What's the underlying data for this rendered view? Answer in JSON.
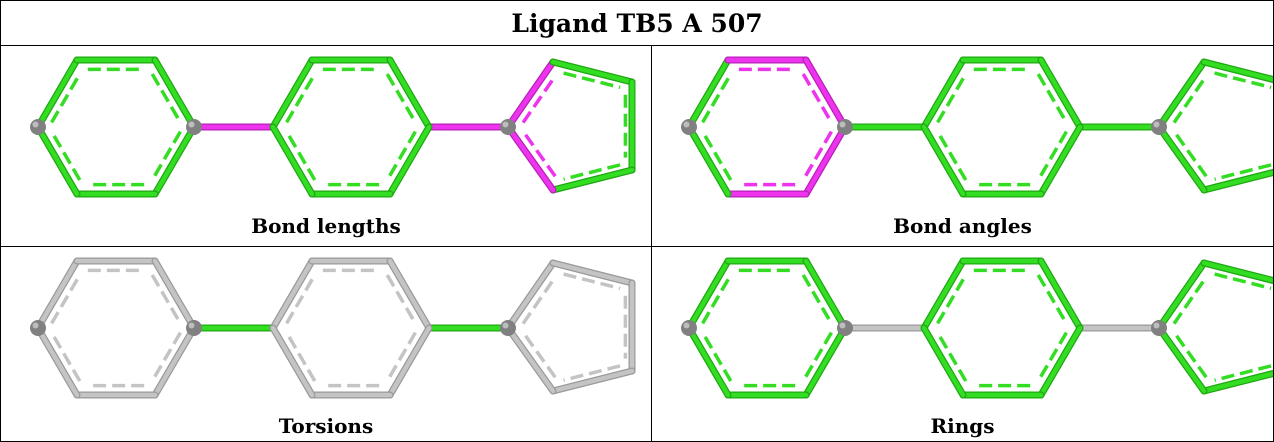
{
  "title": "Ligand TB5 A 507",
  "colors": {
    "good": "#33dd22",
    "good_dark": "#1fa812",
    "outlier": "#ee33ee",
    "outlier_dark": "#b820b8",
    "neutral": "#c4c4c4",
    "neutral_dark": "#9a9a9a",
    "atom": "#808080"
  },
  "panels": [
    {
      "caption": "Bond lengths",
      "color_scheme": "green with magenta outliers",
      "ring_colors": [
        "good",
        "good",
        "good"
      ],
      "linker_colors": [
        "outlier",
        "outlier"
      ],
      "highlight_bonds": [
        {
          "ring": 2,
          "edges": [
            "upper-left",
            "lower-left"
          ],
          "color": "outlier"
        }
      ]
    },
    {
      "caption": "Bond angles",
      "color_scheme": "green with magenta outliers",
      "ring_colors": [
        "good",
        "good",
        "good"
      ],
      "linker_colors": [
        "good",
        "good"
      ],
      "highlight_bonds": [
        {
          "ring": 0,
          "edges": [
            "top",
            "upper-right",
            "lower-right",
            "bottom"
          ],
          "color": "outlier"
        }
      ]
    },
    {
      "caption": "Torsions",
      "color_scheme": "gray with green linkers",
      "ring_colors": [
        "neutral",
        "neutral",
        "neutral"
      ],
      "linker_colors": [
        "good",
        "good"
      ],
      "highlight_bonds": []
    },
    {
      "caption": "Rings",
      "color_scheme": "green rings with gray linkers",
      "ring_colors": [
        "good",
        "good",
        "good"
      ],
      "linker_colors": [
        "neutral",
        "neutral"
      ],
      "highlight_bonds": []
    }
  ]
}
